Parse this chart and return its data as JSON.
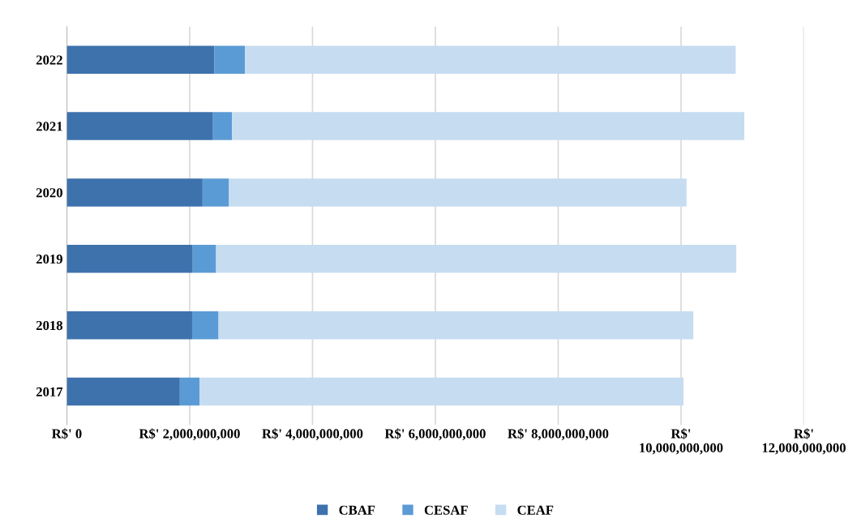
{
  "chart_data": {
    "type": "bar",
    "orientation": "horizontal",
    "stacked": true,
    "categories": [
      "2022",
      "2021",
      "2020",
      "2019",
      "2018",
      "2017"
    ],
    "series": [
      {
        "name": "CBAF",
        "color": "#3d72ad",
        "values": [
          2400000000,
          2380000000,
          2210000000,
          2050000000,
          2040000000,
          1840000000
        ]
      },
      {
        "name": "CESAF",
        "color": "#5b9bd5",
        "values": [
          500000000,
          310000000,
          430000000,
          380000000,
          430000000,
          320000000
        ]
      },
      {
        "name": "CEAF",
        "color": "#c6dcf1",
        "values": [
          7990000000,
          8340000000,
          7450000000,
          8470000000,
          7730000000,
          7880000000
        ]
      }
    ],
    "xlim": [
      0,
      12000000000
    ],
    "xticks": [
      {
        "value": 0,
        "label": "R$' 0"
      },
      {
        "value": 2000000000,
        "label": "R$' 2,000,000,000"
      },
      {
        "value": 4000000000,
        "label": "R$' 4,000,000,000"
      },
      {
        "value": 6000000000,
        "label": "R$' 6,000,000,000"
      },
      {
        "value": 8000000000,
        "label": "R$' 8,000,000,000"
      },
      {
        "value": 10000000000,
        "label": "R$'\n10,000,000,000"
      },
      {
        "value": 12000000000,
        "label": "R$'\n12,000,000,000"
      }
    ],
    "grid": "x",
    "legend": "bottom"
  }
}
